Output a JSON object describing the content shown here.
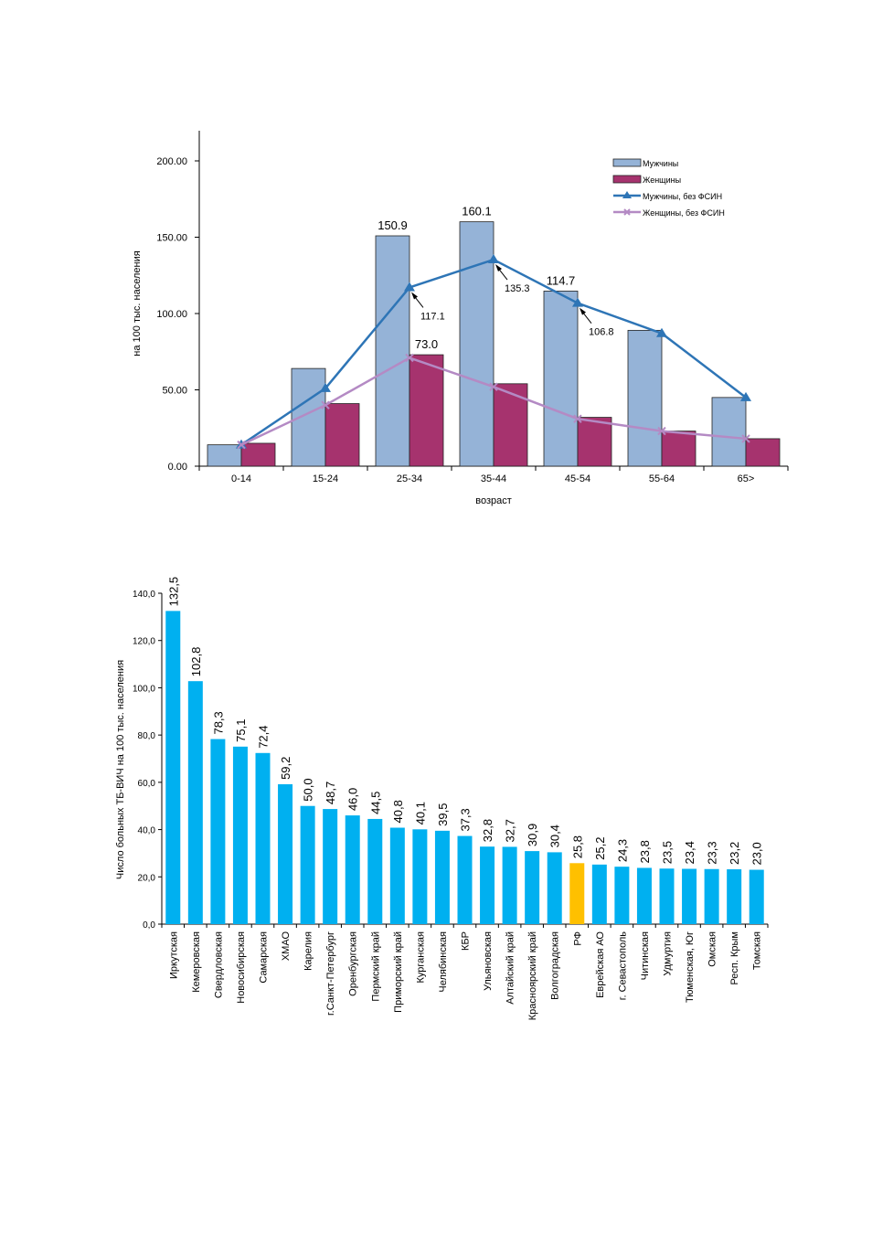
{
  "chart_data": [
    {
      "type": "bar",
      "categories": [
        "0-14",
        "15-24",
        "25-34",
        "35-44",
        "45-54",
        "55-64",
        "65>"
      ],
      "xlabel": "возраст",
      "ylabel": "на 100 тыс. населения",
      "ylim": [
        0,
        200
      ],
      "yticks": [
        "0.00",
        "50.00",
        "100.00",
        "150.00",
        "200.00"
      ],
      "legend_position": "top-right",
      "series": [
        {
          "name": "Мужчины",
          "type": "bar",
          "color": "#95b3d7",
          "values": [
            14,
            64,
            150.9,
            160.1,
            114.7,
            89,
            45
          ],
          "labels": {
            "2": "150.9",
            "3": "160.1",
            "4": "114.7"
          }
        },
        {
          "name": "Женщины",
          "type": "bar",
          "color": "#a6336e",
          "values": [
            15,
            41,
            73.0,
            54,
            32,
            23,
            18
          ],
          "labels": {
            "2": "73.0"
          }
        },
        {
          "name": "Мужчины, без ФСИН",
          "type": "line",
          "color": "#2e75b6",
          "values": [
            14,
            51,
            117.1,
            135.3,
            106.8,
            87,
            45
          ],
          "labels": {
            "2": "117.1",
            "3": "135.3",
            "4": "106.8"
          }
        },
        {
          "name": "Женщины, без ФСИН",
          "type": "line",
          "color": "#b48ac4",
          "values": [
            14,
            40,
            71,
            52,
            31,
            23,
            18
          ]
        }
      ]
    },
    {
      "type": "bar",
      "ylabel": "Число больных ТБ-ВИЧ на 100 тыс. населения",
      "ylim": [
        0,
        140
      ],
      "yticks": [
        "0,0",
        "20,0",
        "40,0",
        "60,0",
        "80,0",
        "100,0",
        "120,0",
        "140,0"
      ],
      "bar_color": "#00b0f0",
      "highlight_color": "#ffc000",
      "highlight_index": 18,
      "categories": [
        "Иркутская",
        "Кемеровская",
        "Свердловская",
        "Новосибирская",
        "Самарская",
        "ХМАО",
        "Карелия",
        "г.Санкт-Петербург",
        "Оренбургская",
        "Пермский край",
        "Приморский край",
        "Курганская",
        "Челябинская",
        "КБР",
        "Ульяновская",
        "Алтайский край",
        "Красноярский край",
        "Волгоградская",
        "РФ",
        "Еврейская АО",
        "г. Севастополь",
        "Читинская",
        "Удмуртия",
        "Тюменская, Юг",
        "Омская",
        "Респ. Крым",
        "Томская"
      ],
      "values": [
        132.5,
        102.8,
        78.3,
        75.1,
        72.4,
        59.2,
        50.0,
        48.7,
        46.0,
        44.5,
        40.8,
        40.1,
        39.5,
        37.3,
        32.8,
        32.7,
        30.9,
        30.4,
        25.8,
        25.2,
        24.3,
        23.8,
        23.5,
        23.4,
        23.3,
        23.2,
        23.0
      ],
      "value_labels": [
        "132,5",
        "102,8",
        "78,3",
        "75,1",
        "72,4",
        "59,2",
        "50,0",
        "48,7",
        "46,0",
        "44,5",
        "40,8",
        "40,1",
        "39,5",
        "37,3",
        "32,8",
        "32,7",
        "30,9",
        "30,4",
        "25,8",
        "25,2",
        "24,3",
        "23,8",
        "23,5",
        "23,4",
        "23,3",
        "23,2",
        "23,0"
      ]
    }
  ]
}
